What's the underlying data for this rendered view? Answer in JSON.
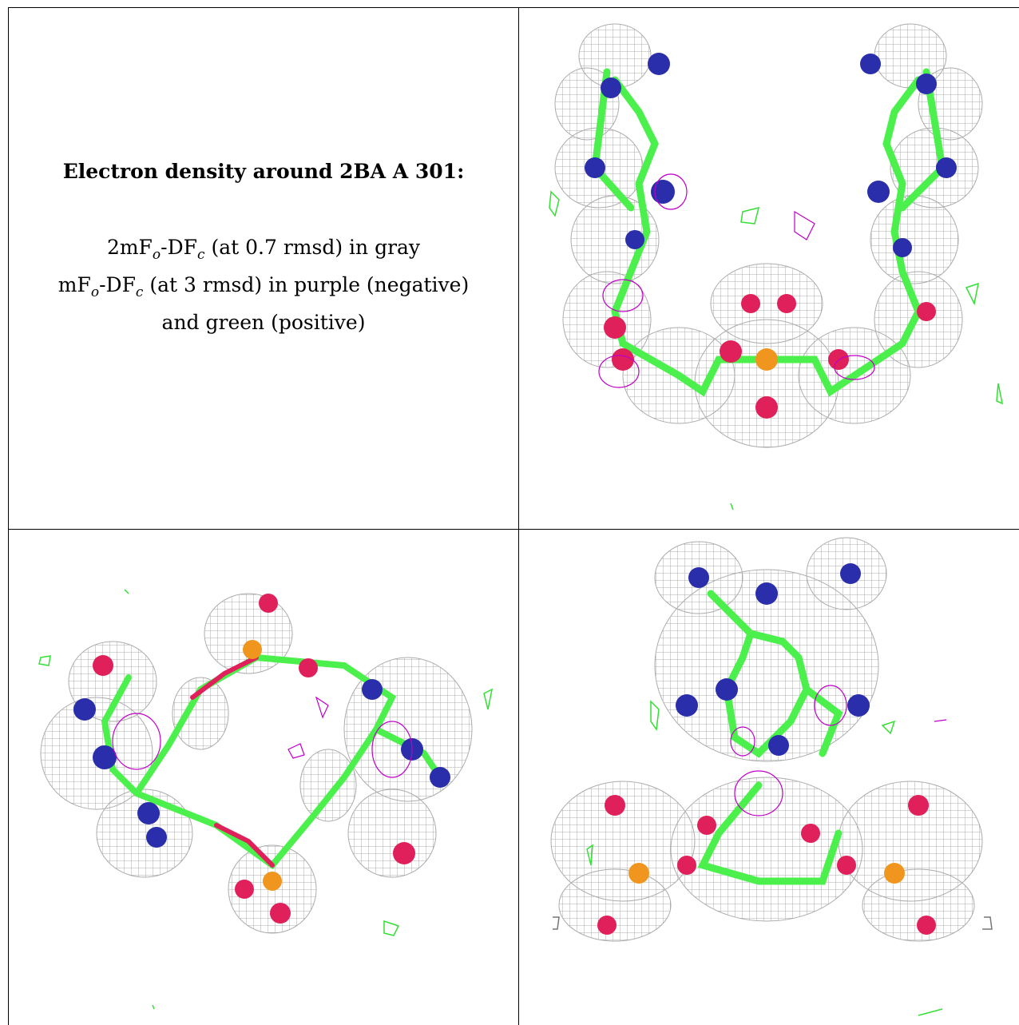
{
  "caption": {
    "title": "Electron density around 2BA A 301:",
    "line1_main": "2mF",
    "line1_sub1": "o",
    "line1_mid": "-DF",
    "line1_sub2": "c",
    "line1_rest": " (at 0.7 rmsd) in gray",
    "line2_main": "mF",
    "line2_sub1": "o",
    "line2_mid": "-DF",
    "line2_sub2": "c",
    "line2_rest": " (at 3 rmsd) in purple (negative)",
    "line3": "and green (positive)"
  },
  "colors": {
    "mesh_gray": "#a8a8a8",
    "negative_purple": "#c000c8",
    "positive_green": "#33e033",
    "bond_green": "#4cf04c",
    "nitrogen_blue": "#2a2eaa",
    "oxygen_red": "#e0205a",
    "phosphorus_orange": "#f0961e"
  },
  "panels": [
    {
      "id": "view-top-right",
      "view": "side"
    },
    {
      "id": "view-bottom-left",
      "view": "top-down"
    },
    {
      "id": "view-bottom-right",
      "view": "end-on"
    }
  ]
}
